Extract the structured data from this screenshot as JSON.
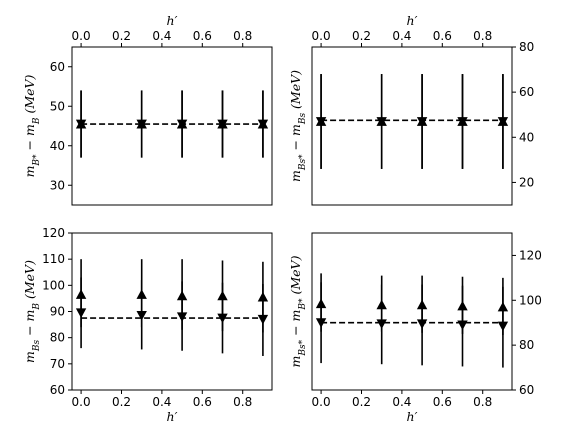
{
  "chart_data": [
    {
      "type": "scatter",
      "panel": "top-left",
      "xlabel": "h′",
      "ylabel": "m_{B*} − m_B (MeV)",
      "xlim": [
        -0.045,
        0.945
      ],
      "ylim": [
        25,
        65
      ],
      "x_ticks": [
        0.0,
        0.2,
        0.4,
        0.6,
        0.8
      ],
      "x_tick_labels": [
        "0.0",
        "0.2",
        "0.4",
        "0.6",
        "0.8"
      ],
      "y_ticks": [
        30,
        40,
        50,
        60
      ],
      "y_tick_labels": [
        "30",
        "40",
        "50",
        "60"
      ],
      "x_axis_position": "top",
      "y_axis_position": "left",
      "dashed_line": 45.5,
      "series": [
        {
          "marker": "triangle-up",
          "x": [
            0.0,
            0.3,
            0.5,
            0.7,
            0.9
          ],
          "y": [
            45.5,
            45.5,
            45.5,
            45.5,
            45.5
          ],
          "yerr_low": [
            37,
            37,
            37,
            37,
            37
          ],
          "yerr_high": [
            54,
            54,
            54,
            54,
            54
          ]
        },
        {
          "marker": "triangle-down",
          "x": [
            0.0,
            0.3,
            0.5,
            0.7,
            0.9
          ],
          "y": [
            45.5,
            45.5,
            45.5,
            45.5,
            45.5
          ],
          "yerr_low": [
            37,
            37,
            37,
            37,
            37
          ],
          "yerr_high": [
            54,
            54,
            54,
            54,
            54
          ]
        }
      ]
    },
    {
      "type": "scatter",
      "panel": "top-right",
      "xlabel": "h′",
      "ylabel": "m_{Bs*} − m_{Bs} (MeV)",
      "xlim": [
        -0.045,
        0.945
      ],
      "ylim": [
        10,
        80
      ],
      "x_ticks": [
        0.0,
        0.2,
        0.4,
        0.6,
        0.8
      ],
      "x_tick_labels": [
        "0.0",
        "0.2",
        "0.4",
        "0.6",
        "0.8"
      ],
      "y_ticks": [
        20,
        40,
        60,
        80
      ],
      "y_tick_labels": [
        "20",
        "40",
        "60",
        "80"
      ],
      "x_axis_position": "top",
      "y_axis_position": "right",
      "dashed_line": 47.5,
      "series": [
        {
          "marker": "triangle-up",
          "x": [
            0.0,
            0.3,
            0.5,
            0.7,
            0.9
          ],
          "y": [
            47,
            47,
            47,
            47,
            47
          ],
          "yerr_low": [
            26,
            26,
            26,
            26,
            26
          ],
          "yerr_high": [
            68,
            68,
            68,
            68,
            68
          ]
        },
        {
          "marker": "triangle-down",
          "x": [
            0.0,
            0.3,
            0.5,
            0.7,
            0.9
          ],
          "y": [
            47,
            47,
            47,
            47,
            47
          ],
          "yerr_low": [
            26,
            26,
            26,
            26,
            26
          ],
          "yerr_high": [
            68,
            68,
            68,
            68,
            68
          ]
        }
      ]
    },
    {
      "type": "scatter",
      "panel": "bottom-left",
      "xlabel": "h′",
      "ylabel": "m_{Bs} − m_B (MeV)",
      "xlim": [
        -0.045,
        0.945
      ],
      "ylim": [
        60,
        120
      ],
      "x_ticks": [
        0.0,
        0.2,
        0.4,
        0.6,
        0.8
      ],
      "x_tick_labels": [
        "0.0",
        "0.2",
        "0.4",
        "0.6",
        "0.8"
      ],
      "y_ticks": [
        60,
        70,
        80,
        90,
        100,
        110,
        120
      ],
      "y_tick_labels": [
        "60",
        "70",
        "80",
        "90",
        "100",
        "110",
        "120"
      ],
      "x_axis_position": "bottom",
      "y_axis_position": "left",
      "dashed_line": 87.5,
      "series": [
        {
          "marker": "triangle-up",
          "x": [
            0.0,
            0.3,
            0.5,
            0.7,
            0.9
          ],
          "y": [
            96.5,
            96.5,
            96,
            96,
            95.5
          ],
          "yerr_low": [
            84,
            84,
            83,
            82.5,
            82
          ],
          "yerr_high": [
            110,
            110,
            110,
            109.5,
            109
          ]
        },
        {
          "marker": "triangle-down",
          "x": [
            0.0,
            0.3,
            0.5,
            0.7,
            0.9
          ],
          "y": [
            89.5,
            88.5,
            88,
            87.5,
            87
          ],
          "yerr_low": [
            76,
            75.5,
            75,
            74,
            73
          ],
          "yerr_high": [
            103,
            102,
            101.5,
            101,
            100.5
          ]
        }
      ]
    },
    {
      "type": "scatter",
      "panel": "bottom-right",
      "xlabel": "h′",
      "ylabel": "m_{Bs*} − m_{B*} (MeV)",
      "xlim": [
        -0.045,
        0.945
      ],
      "ylim": [
        60,
        130
      ],
      "x_ticks": [
        0.0,
        0.2,
        0.4,
        0.6,
        0.8
      ],
      "x_tick_labels": [
        "0.0",
        "0.2",
        "0.4",
        "0.6",
        "0.8"
      ],
      "y_ticks": [
        60,
        80,
        100,
        120
      ],
      "y_tick_labels": [
        "60",
        "80",
        "100",
        "120"
      ],
      "x_axis_position": "bottom",
      "y_axis_position": "right",
      "dashed_line": 90,
      "series": [
        {
          "marker": "triangle-up",
          "x": [
            0.0,
            0.3,
            0.5,
            0.7,
            0.9
          ],
          "y": [
            98.5,
            98,
            98,
            97.5,
            97
          ],
          "yerr_low": [
            86,
            86,
            85.5,
            85,
            84.5
          ],
          "yerr_high": [
            112,
            111,
            111,
            110.5,
            110
          ]
        },
        {
          "marker": "triangle-down",
          "x": [
            0.0,
            0.3,
            0.5,
            0.7,
            0.9
          ],
          "y": [
            90,
            89.5,
            89.5,
            89,
            88.5
          ],
          "yerr_low": [
            72,
            71.5,
            71,
            70.5,
            70
          ],
          "yerr_high": [
            108,
            107,
            107,
            106.5,
            106
          ]
        }
      ]
    }
  ]
}
